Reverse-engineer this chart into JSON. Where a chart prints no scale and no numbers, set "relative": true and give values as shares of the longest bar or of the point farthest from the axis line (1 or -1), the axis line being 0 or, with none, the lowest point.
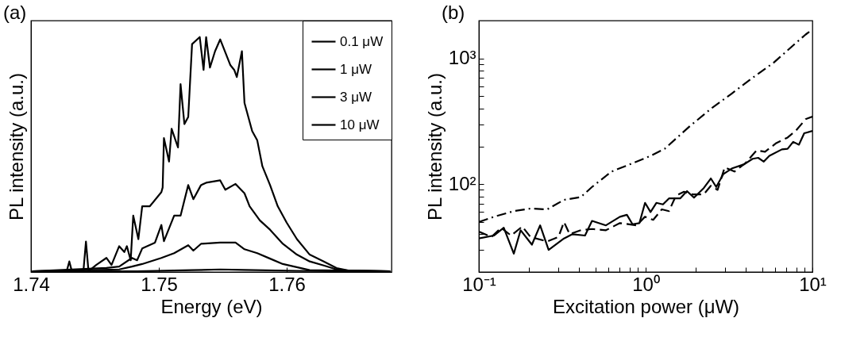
{
  "chart_data": [
    {
      "type": "line",
      "xlabel": "Energy (eV)",
      "ylabel": "PL intensity (a.u.)",
      "relative": true,
      "legend": "top right",
      "grid": false,
      "annotations": [
        "(a)"
      ],
      "xlim": [
        1.74,
        1.7682
      ],
      "xticks": [
        1.74,
        1.75,
        1.76
      ],
      "series": [
        {
          "name": "0.1 μW",
          "color": "#000000",
          "x": [
            1.7401,
            1.7483,
            1.7526,
            1.7548,
            1.7567,
            1.7608,
            1.7681
          ],
          "values": [
            0.002,
            0.003,
            0.008,
            0.011,
            0.009,
            0.005,
            0.002
          ]
        },
        {
          "name": "1 μW",
          "color": "#000000",
          "x": [
            1.7401,
            1.7469,
            1.7479,
            1.7487,
            1.7502,
            1.7512,
            1.7523,
            1.7527,
            1.7533,
            1.7548,
            1.756,
            1.7567,
            1.7577,
            1.7587,
            1.7597,
            1.7618,
            1.7681
          ],
          "values": [
            0.003,
            0.011,
            0.023,
            0.034,
            0.06,
            0.08,
            0.114,
            0.091,
            0.12,
            0.125,
            0.125,
            0.097,
            0.08,
            0.057,
            0.034,
            0.008,
            0.003
          ]
        },
        {
          "name": "3 μW",
          "color": "#000000",
          "x": [
            1.7401,
            1.7459,
            1.7469,
            1.7479,
            1.7483,
            1.7487,
            1.7497,
            1.7502,
            1.7504,
            1.7512,
            1.7517,
            1.7523,
            1.7527,
            1.7533,
            1.7537,
            1.7548,
            1.7552,
            1.756,
            1.7567,
            1.7571,
            1.7579,
            1.7587,
            1.7597,
            1.7608,
            1.7618,
            1.7629,
            1.7639,
            1.7649,
            1.7681
          ],
          "values": [
            0.003,
            0.017,
            0.023,
            0.06,
            0.05,
            0.1,
            0.125,
            0.2,
            0.131,
            0.24,
            0.24,
            0.37,
            0.31,
            0.37,
            0.38,
            0.39,
            0.35,
            0.375,
            0.335,
            0.28,
            0.22,
            0.18,
            0.12,
            0.074,
            0.045,
            0.028,
            0.011,
            0.006,
            0.003
          ]
        },
        {
          "name": "10 μW",
          "color": "#000000",
          "x": [
            1.7401,
            1.7428,
            1.743,
            1.7432,
            1.7441,
            1.7443,
            1.7445,
            1.7451,
            1.7459,
            1.7463,
            1.7469,
            1.7473,
            1.7475,
            1.7478,
            1.748,
            1.7484,
            1.7487,
            1.7493,
            1.7502,
            1.7503,
            1.7504,
            1.7508,
            1.751,
            1.7515,
            1.7517,
            1.752,
            1.7523,
            1.7526,
            1.7532,
            1.7535,
            1.7537,
            1.754,
            1.7544,
            1.7548,
            1.7556,
            1.7559,
            1.7561,
            1.7565,
            1.7567,
            1.7573,
            1.7577,
            1.7581,
            1.7587,
            1.7593,
            1.76,
            1.7608,
            1.7618,
            1.7629,
            1.7639,
            1.7649,
            1.7681
          ],
          "values": [
            0.003,
            0.005,
            0.045,
            0.003,
            0.003,
            0.13,
            0.003,
            0.03,
            0.06,
            0.03,
            0.11,
            0.085,
            0.11,
            0.05,
            0.24,
            0.14,
            0.28,
            0.28,
            0.34,
            0.36,
            0.57,
            0.47,
            0.61,
            0.53,
            0.8,
            0.63,
            0.66,
            0.97,
            1.0,
            0.86,
            1.0,
            0.87,
            0.94,
            0.99,
            0.88,
            0.86,
            0.83,
            0.94,
            0.72,
            0.6,
            0.56,
            0.45,
            0.37,
            0.28,
            0.21,
            0.14,
            0.074,
            0.045,
            0.017,
            0.006,
            0.003
          ]
        }
      ]
    },
    {
      "type": "line",
      "xlabel": "Excitation power (μW)",
      "ylabel": "PL intensity (a.u.)",
      "log": "xy",
      "legend": false,
      "grid": false,
      "annotations": [
        "(b)"
      ],
      "xlim": [
        0.1,
        10
      ],
      "ylim": [
        20,
        2000
      ],
      "xticks": [
        {
          "value": 0.1,
          "label": "10⁻¹"
        },
        {
          "value": 0.2,
          "label": null
        },
        {
          "value": 0.3,
          "label": null
        },
        {
          "value": 0.4,
          "label": null
        },
        {
          "value": 0.5,
          "label": null
        },
        {
          "value": 0.6,
          "label": null
        },
        {
          "value": 0.7,
          "label": null
        },
        {
          "value": 0.8,
          "label": null
        },
        {
          "value": 0.9,
          "label": null
        },
        {
          "value": 1,
          "label": "10⁰"
        },
        {
          "value": 2,
          "label": null
        },
        {
          "value": 3,
          "label": null
        },
        {
          "value": 4,
          "label": null
        },
        {
          "value": 5,
          "label": null
        },
        {
          "value": 6,
          "label": null
        },
        {
          "value": 7,
          "label": null
        },
        {
          "value": 8,
          "label": null
        },
        {
          "value": 9,
          "label": null
        },
        {
          "value": 10,
          "label": "10¹"
        }
      ],
      "yticks": [
        {
          "value": 20,
          "label": null
        },
        {
          "value": 30,
          "label": null
        },
        {
          "value": 40,
          "label": null
        },
        {
          "value": 50,
          "label": null
        },
        {
          "value": 60,
          "label": null
        },
        {
          "value": 70,
          "label": null
        },
        {
          "value": 80,
          "label": null
        },
        {
          "value": 90,
          "label": null
        },
        {
          "value": 100,
          "label": "10²"
        },
        {
          "value": 200,
          "label": null
        },
        {
          "value": 300,
          "label": null
        },
        {
          "value": 400,
          "label": null
        },
        {
          "value": 500,
          "label": null
        },
        {
          "value": 600,
          "label": null
        },
        {
          "value": 700,
          "label": null
        },
        {
          "value": 800,
          "label": null
        },
        {
          "value": 900,
          "label": null
        },
        {
          "value": 1000,
          "label": "10³"
        }
      ],
      "series": [
        {
          "color": "#000000",
          "line_style": "solid",
          "x": [
            0.1,
            0.123,
            0.141,
            0.162,
            0.178,
            0.208,
            0.233,
            0.262,
            0.324,
            0.364,
            0.433,
            0.477,
            0.578,
            0.701,
            0.772,
            0.834,
            0.918,
            0.992,
            1.07,
            1.16,
            1.27,
            1.38,
            1.61,
            1.77,
            1.95,
            2.23,
            2.46,
            2.65,
            2.92,
            3.28,
            3.9,
            4.38,
            4.73,
            5.11,
            5.52,
            6.56,
            7.1,
            7.67,
            8.3,
            8.93,
            10
          ],
          "values": [
            37,
            39,
            45,
            28,
            43,
            33,
            47,
            30,
            37,
            40,
            39,
            51,
            47,
            55,
            57,
            48,
            49,
            71,
            60,
            71,
            69,
            77,
            77,
            88,
            78,
            93,
            111,
            95,
            120,
            133,
            144,
            159,
            162,
            151,
            168,
            189,
            191,
            217,
            206,
            254,
            265
          ]
        },
        {
          "color": "#000000",
          "line_style": "dashed",
          "x": [
            0.1,
            0.119,
            0.136,
            0.156,
            0.182,
            0.204,
            0.257,
            0.3,
            0.324,
            0.35,
            0.409,
            0.477,
            0.578,
            0.701,
            0.884,
            0.99,
            1.11,
            1.25,
            1.38,
            1.52,
            1.7,
            1.91,
            2.23,
            2.46,
            2.7,
            2.98,
            3.41,
            3.97,
            4.63,
            5.2,
            6.07,
            7.1,
            7.97,
            9.11,
            10
          ],
          "values": [
            42,
            38,
            45,
            39,
            46,
            38,
            35,
            38,
            50,
            40,
            43,
            44,
            43,
            49,
            47,
            55,
            52,
            63,
            61,
            81,
            87,
            83,
            83,
            97,
            90,
            136,
            126,
            147,
            186,
            181,
            212,
            235,
            267,
            329,
            345
          ]
        },
        {
          "color": "#000000",
          "line_style": "dashdot",
          "x": [
            0.1,
            0.123,
            0.162,
            0.204,
            0.257,
            0.324,
            0.409,
            0.477,
            0.625,
            0.85,
            1.07,
            1.3,
            1.84,
            2.5,
            3.28,
            4.46,
            5.85,
            7.97,
            9.11,
            10
          ],
          "values": [
            50,
            55,
            61,
            64,
            63,
            75,
            79,
            95,
            126,
            148,
            168,
            191,
            289,
            404,
            525,
            714,
            925,
            1329,
            1551,
            1700
          ]
        }
      ]
    }
  ]
}
